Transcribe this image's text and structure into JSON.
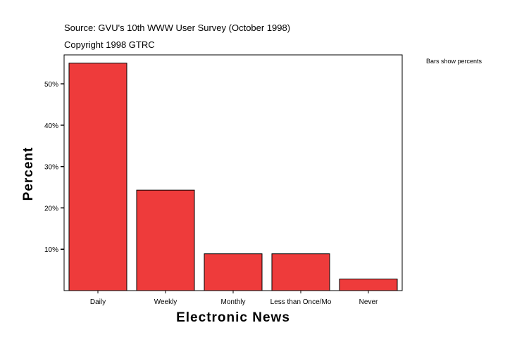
{
  "header": {
    "source": "Source: GVU's 10th WWW User Survey (October 1998)",
    "copyright": "Copyright 1998 GTRC"
  },
  "note": "Bars show percents",
  "chart_data": {
    "type": "bar",
    "title": "",
    "xlabel": "Electronic News",
    "ylabel": "Percent",
    "categories": [
      "Daily",
      "Weekly",
      "Monthly",
      "Less than Once/Mo",
      "Never"
    ],
    "values": [
      55.0,
      24.3,
      8.9,
      8.9,
      2.8
    ],
    "yticks": [
      10,
      20,
      30,
      40,
      50
    ],
    "ytick_labels": [
      "10%",
      "20%",
      "30%",
      "40%",
      "50%"
    ],
    "ylim": [
      0,
      57
    ],
    "grid": false,
    "bar_color": "#ee3b3b"
  }
}
